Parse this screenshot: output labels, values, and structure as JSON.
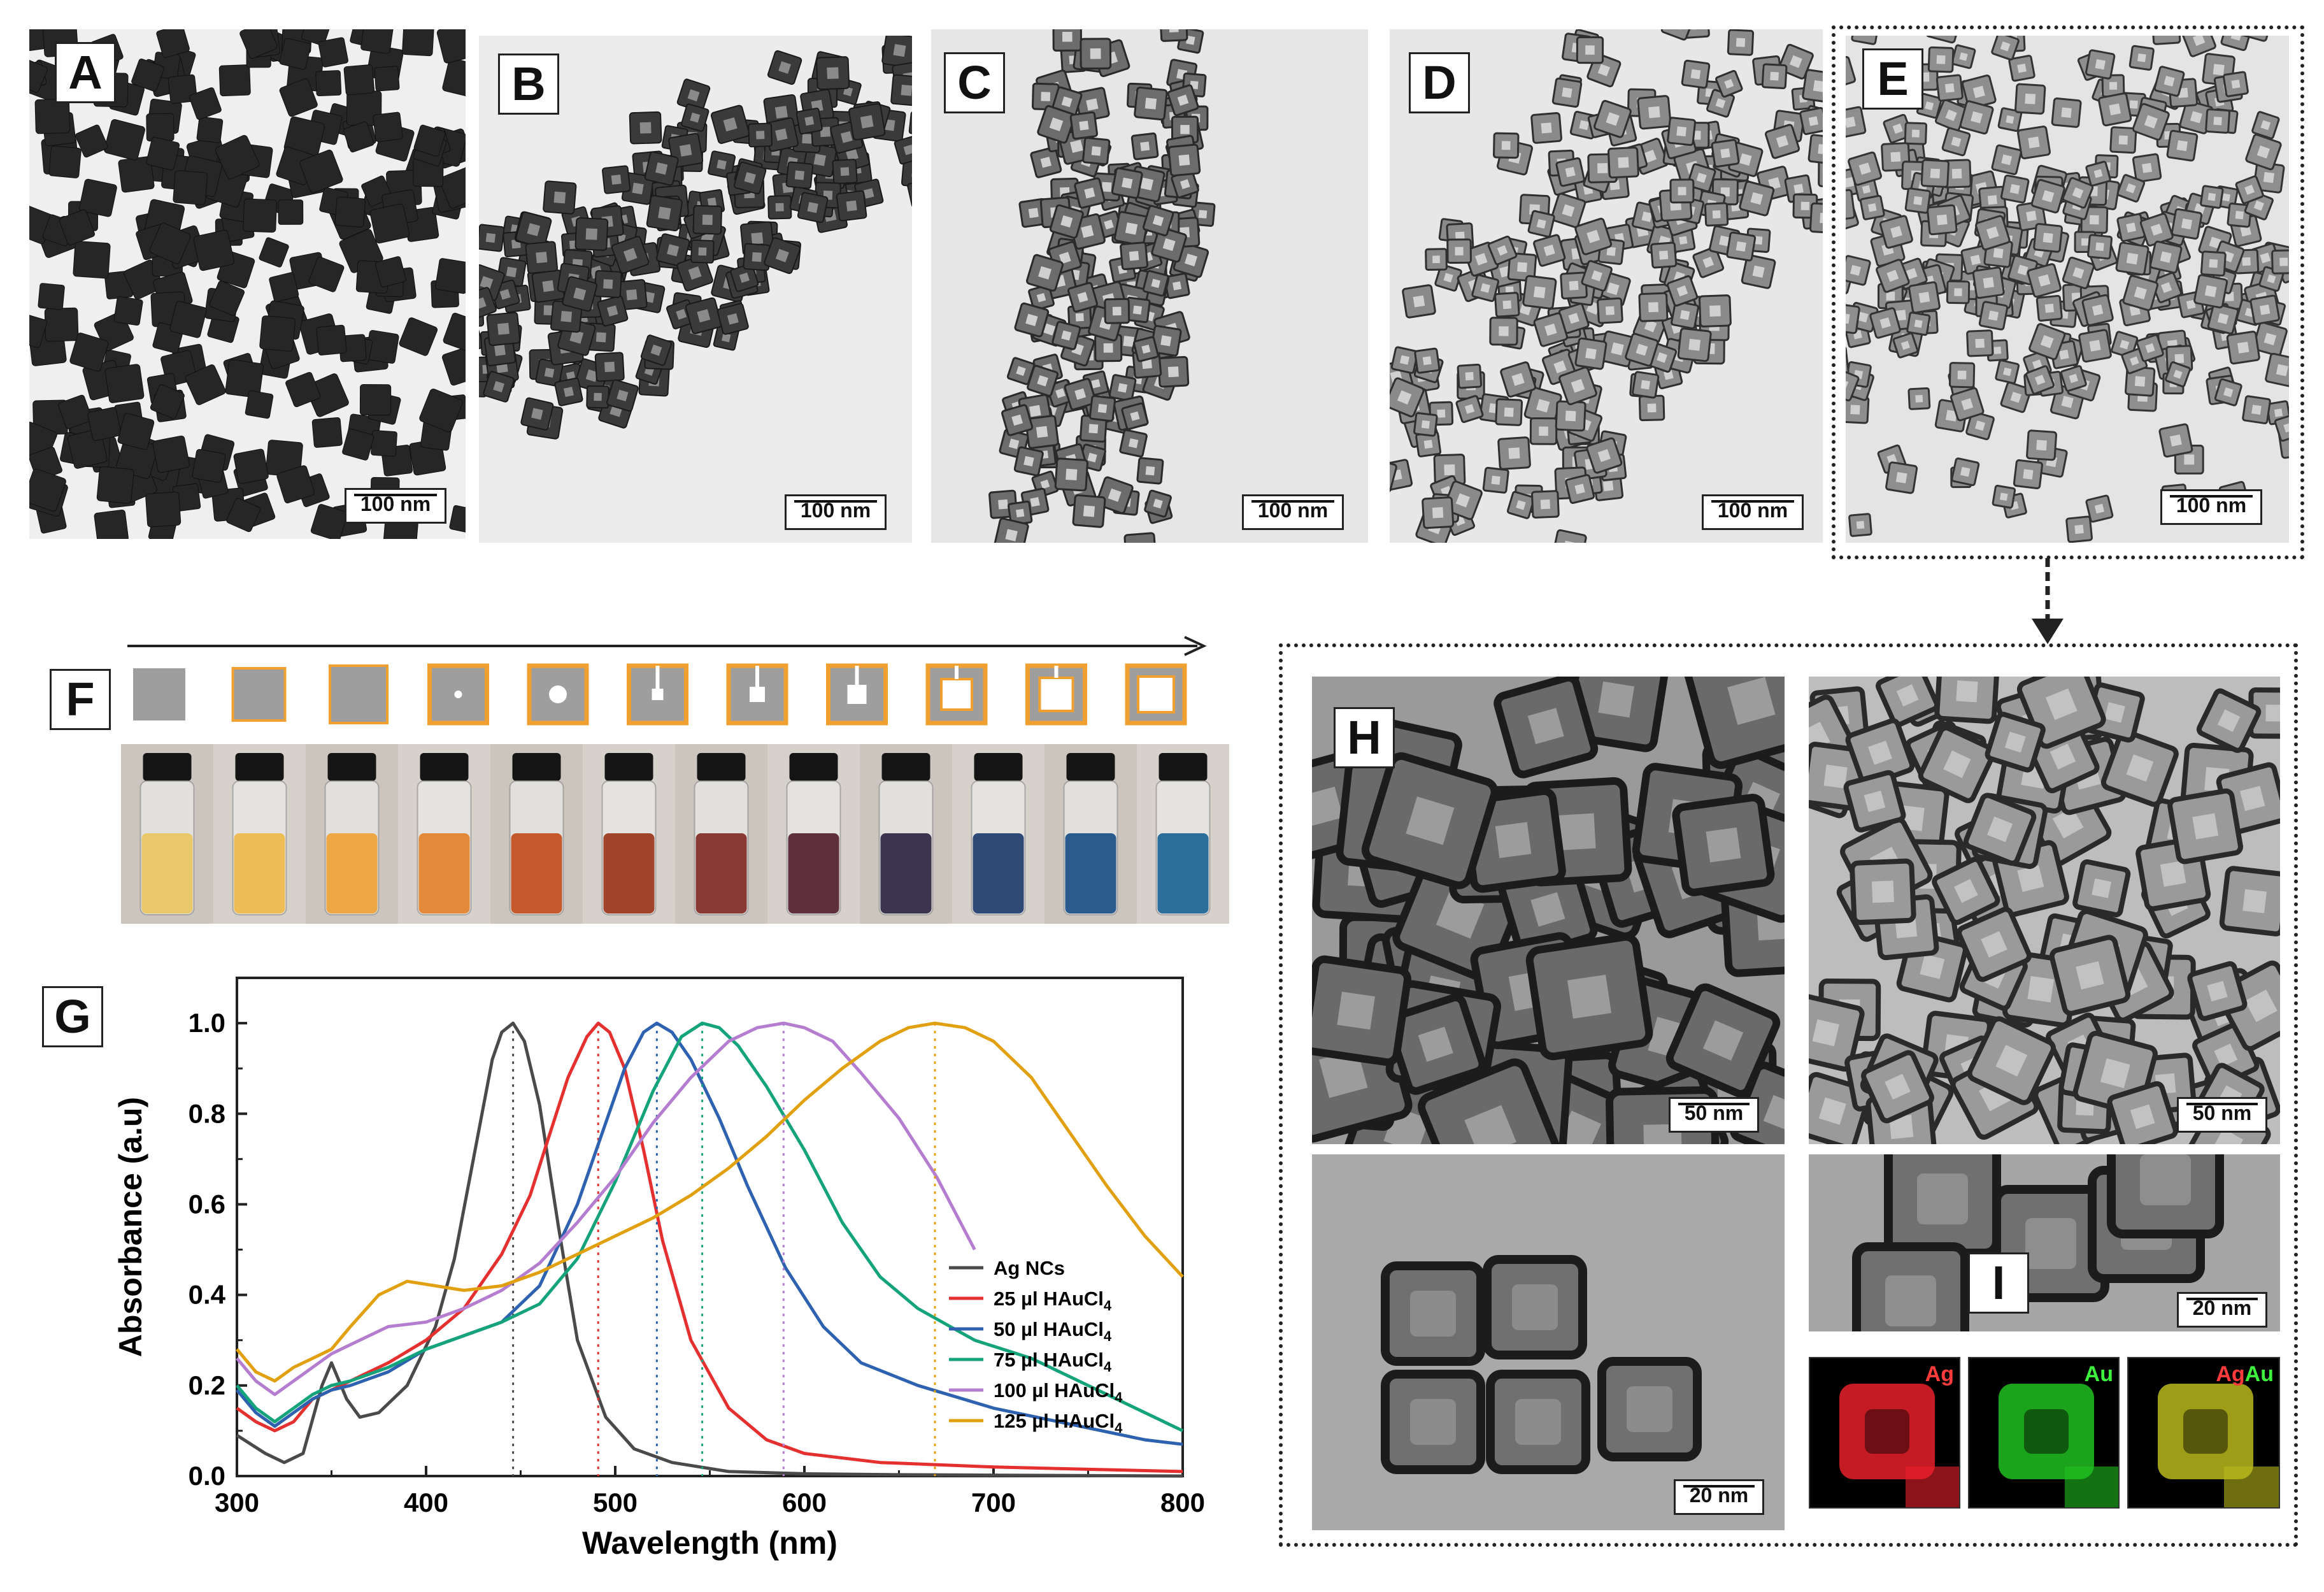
{
  "panels": {
    "A": {
      "label": "A",
      "scale": "100 nm"
    },
    "B": {
      "label": "B",
      "scale": "100 nm"
    },
    "C": {
      "label": "C",
      "scale": "100 nm"
    },
    "D": {
      "label": "D",
      "scale": "100 nm"
    },
    "E": {
      "label": "E",
      "scale": "100 nm"
    },
    "F": {
      "label": "F"
    },
    "G": {
      "label": "G"
    },
    "H": {
      "label": "H",
      "scale_top_left": "50 nm",
      "scale_top_right": "50 nm",
      "scale_bottom_left": "20 nm"
    },
    "I": {
      "label": "I",
      "scale": "20 nm",
      "map_ag": "Ag",
      "map_au": "Au",
      "map_merge_ag": "Ag",
      "map_merge_au": "Au"
    }
  },
  "vials": {
    "colors": [
      "#e9c86a",
      "#eebd55",
      "#eda845",
      "#e28a3a",
      "#c45a2c",
      "#a2432c",
      "#8a3a35",
      "#5e2f3c",
      "#3b3550",
      "#2f4a77",
      "#2a5a8e",
      "#2b6e9c"
    ]
  },
  "chart_data": {
    "type": "line",
    "xlabel": "Wavelength (nm)",
    "ylabel": "Absorbance (a.u)",
    "xlim": [
      300,
      800
    ],
    "ylim": [
      0.0,
      1.1
    ],
    "xticks": [
      "300",
      "400",
      "500",
      "600",
      "700",
      "800"
    ],
    "yticks": [
      "0.0",
      "0.2",
      "0.4",
      "0.6",
      "0.8",
      "1.0"
    ],
    "legend_position": "inside-right",
    "series": [
      {
        "name": "Ag NCs",
        "color": "#4a4a4a",
        "peak": 446,
        "x": [
          300,
          315,
          325,
          335,
          345,
          350,
          358,
          365,
          375,
          390,
          405,
          415,
          425,
          435,
          440,
          446,
          452,
          460,
          470,
          480,
          495,
          510,
          530,
          560,
          600,
          650,
          700,
          800
        ],
        "y": [
          0.09,
          0.05,
          0.03,
          0.05,
          0.2,
          0.25,
          0.17,
          0.13,
          0.14,
          0.2,
          0.33,
          0.48,
          0.7,
          0.92,
          0.98,
          1.0,
          0.96,
          0.82,
          0.55,
          0.3,
          0.13,
          0.06,
          0.03,
          0.01,
          0.005,
          0.003,
          0.002,
          0.0
        ]
      },
      {
        "name": "25 µl HAuCl4",
        "color": "#e53030",
        "peak": 491,
        "x": [
          300,
          310,
          320,
          330,
          340,
          350,
          360,
          380,
          400,
          420,
          440,
          455,
          465,
          475,
          485,
          491,
          497,
          505,
          515,
          525,
          540,
          560,
          580,
          600,
          640,
          700,
          800
        ],
        "y": [
          0.15,
          0.12,
          0.1,
          0.12,
          0.17,
          0.19,
          0.21,
          0.25,
          0.3,
          0.37,
          0.49,
          0.62,
          0.75,
          0.88,
          0.97,
          1.0,
          0.98,
          0.9,
          0.72,
          0.52,
          0.3,
          0.15,
          0.08,
          0.05,
          0.03,
          0.02,
          0.01
        ]
      },
      {
        "name": "50 µl HAuCl4",
        "color": "#2e62b0",
        "peak": 522,
        "x": [
          300,
          310,
          320,
          330,
          340,
          350,
          360,
          380,
          400,
          420,
          440,
          460,
          480,
          495,
          505,
          515,
          522,
          530,
          540,
          555,
          570,
          590,
          610,
          630,
          660,
          700,
          780,
          800
        ],
        "y": [
          0.19,
          0.14,
          0.11,
          0.14,
          0.17,
          0.19,
          0.2,
          0.23,
          0.28,
          0.31,
          0.34,
          0.42,
          0.6,
          0.78,
          0.9,
          0.98,
          1.0,
          0.98,
          0.92,
          0.79,
          0.64,
          0.46,
          0.33,
          0.25,
          0.2,
          0.15,
          0.08,
          0.07
        ]
      },
      {
        "name": "75 µl HAuCl4",
        "color": "#14a37a",
        "peak": 546,
        "x": [
          300,
          310,
          320,
          330,
          340,
          350,
          360,
          380,
          400,
          420,
          440,
          460,
          480,
          500,
          520,
          535,
          546,
          555,
          565,
          580,
          600,
          620,
          640,
          660,
          690,
          720,
          760,
          800
        ],
        "y": [
          0.2,
          0.15,
          0.12,
          0.15,
          0.18,
          0.2,
          0.21,
          0.24,
          0.28,
          0.31,
          0.34,
          0.38,
          0.48,
          0.65,
          0.85,
          0.97,
          1.0,
          0.99,
          0.95,
          0.86,
          0.72,
          0.56,
          0.44,
          0.37,
          0.3,
          0.26,
          0.18,
          0.1
        ]
      },
      {
        "name": "100 µl HAuCl4",
        "color": "#b47dd0",
        "peak": 589,
        "x": [
          300,
          310,
          320,
          330,
          340,
          350,
          360,
          380,
          400,
          420,
          440,
          460,
          480,
          500,
          520,
          540,
          560,
          575,
          589,
          600,
          615,
          630,
          650,
          670,
          690
        ],
        "y": [
          0.26,
          0.21,
          0.18,
          0.21,
          0.24,
          0.27,
          0.29,
          0.33,
          0.34,
          0.37,
          0.41,
          0.47,
          0.56,
          0.66,
          0.78,
          0.88,
          0.96,
          0.99,
          1.0,
          0.99,
          0.96,
          0.89,
          0.79,
          0.66,
          0.5
        ]
      },
      {
        "name": "125 µl HAuCl4",
        "color": "#e0a010",
        "peak": 669,
        "x": [
          300,
          310,
          320,
          330,
          340,
          350,
          360,
          375,
          390,
          405,
          420,
          440,
          460,
          480,
          500,
          520,
          540,
          560,
          580,
          600,
          620,
          640,
          655,
          669,
          685,
          700,
          720,
          740,
          760,
          780,
          800
        ],
        "y": [
          0.28,
          0.23,
          0.21,
          0.24,
          0.26,
          0.28,
          0.33,
          0.4,
          0.43,
          0.42,
          0.41,
          0.42,
          0.45,
          0.49,
          0.53,
          0.57,
          0.62,
          0.68,
          0.75,
          0.83,
          0.9,
          0.96,
          0.99,
          1.0,
          0.99,
          0.96,
          0.88,
          0.76,
          0.64,
          0.53,
          0.44
        ]
      }
    ]
  }
}
